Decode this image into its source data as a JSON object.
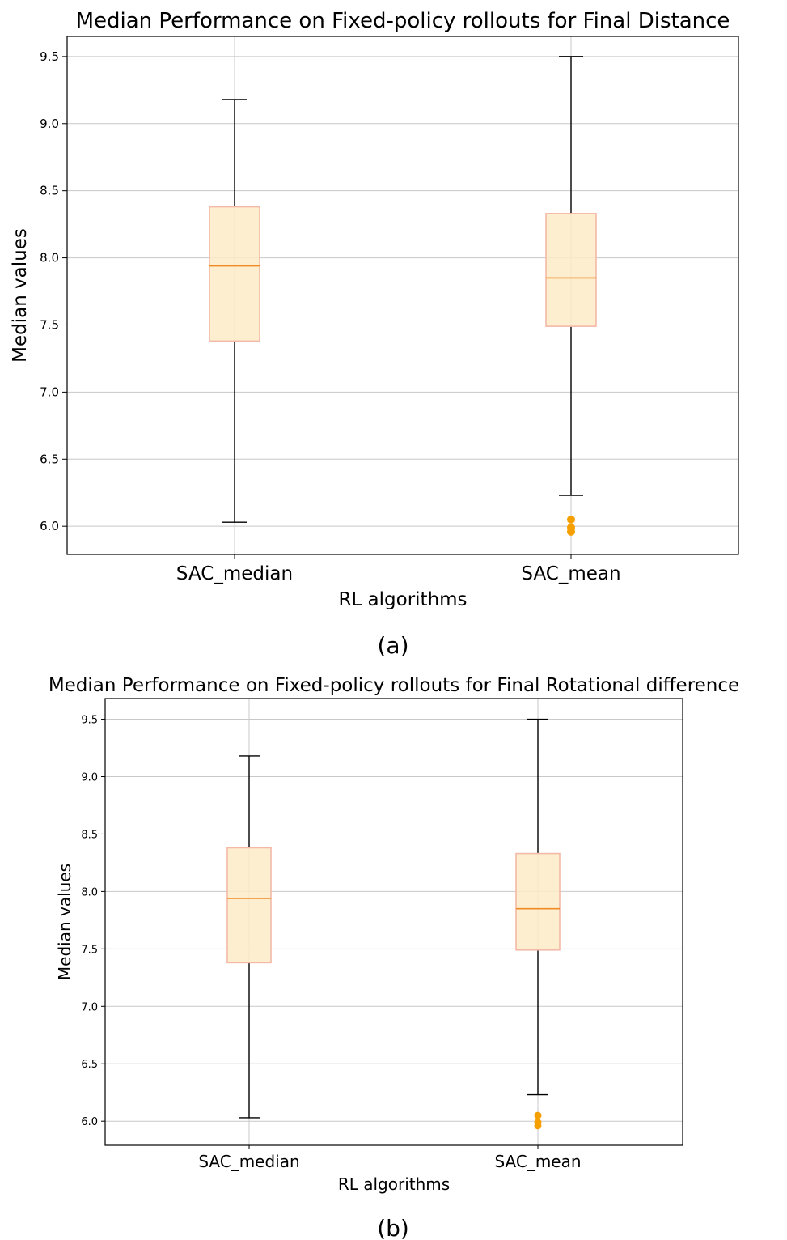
{
  "chart_data": [
    {
      "type": "box",
      "title": "Median Performance on Fixed-policy rollouts for Final Distance",
      "xlabel": "RL algorithms",
      "ylabel": "Median values",
      "panel_label": "(a)",
      "categories": [
        "SAC_median",
        "SAC_mean"
      ],
      "yticks": [
        "6.0",
        "6.5",
        "7.0",
        "7.5",
        "8.0",
        "8.5",
        "9.0",
        "9.5"
      ],
      "ylim": [
        5.79,
        9.65
      ],
      "grid": true,
      "boxes": [
        {
          "whisker_low": 6.03,
          "q1": 7.38,
          "median": 7.94,
          "q3": 8.38,
          "whisker_high": 9.18,
          "outliers": []
        },
        {
          "whisker_low": 6.23,
          "q1": 7.49,
          "median": 7.85,
          "q3": 8.33,
          "whisker_high": 9.5,
          "outliers": [
            6.05,
            5.99,
            5.96
          ]
        }
      ],
      "colors": {
        "box_fill": "#fdebc8",
        "box_edge": "#f3b9a6",
        "median": "#f08a22",
        "outlier": "#f5a000",
        "whisker": "#000000",
        "grid": "#c8c8c8"
      }
    },
    {
      "type": "box",
      "title": "Median Performance on Fixed-policy rollouts for Final Rotational difference",
      "xlabel": "RL algorithms",
      "ylabel": "Median values",
      "panel_label": "(b)",
      "categories": [
        "SAC_median",
        "SAC_mean"
      ],
      "yticks": [
        "6.0",
        "6.5",
        "7.0",
        "7.5",
        "8.0",
        "8.5",
        "9.0",
        "9.5"
      ],
      "ylim": [
        5.79,
        9.68
      ],
      "grid": true,
      "boxes": [
        {
          "whisker_low": 6.03,
          "q1": 7.38,
          "median": 7.94,
          "q3": 8.38,
          "whisker_high": 9.18,
          "outliers": []
        },
        {
          "whisker_low": 6.23,
          "q1": 7.49,
          "median": 7.85,
          "q3": 8.33,
          "whisker_high": 9.5,
          "outliers": [
            6.05,
            5.99,
            5.96
          ]
        }
      ],
      "colors": {
        "box_fill": "#fdebc8",
        "box_edge": "#f3b9a6",
        "median": "#f08a22",
        "outlier": "#f5a000",
        "whisker": "#000000",
        "grid": "#c8c8c8"
      }
    }
  ]
}
